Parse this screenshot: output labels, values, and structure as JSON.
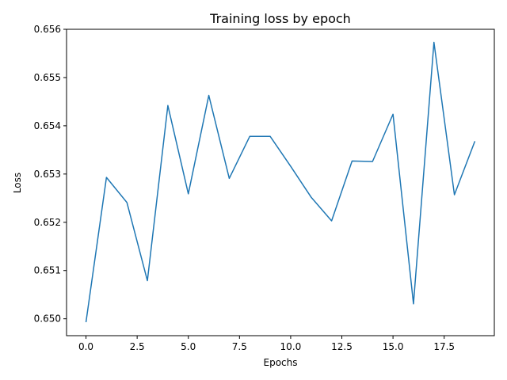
{
  "chart_data": {
    "type": "line",
    "title": "Training loss by epoch",
    "xlabel": "Epochs",
    "ylabel": "Loss",
    "xlim": [
      -0.95,
      19.95
    ],
    "ylim": [
      0.64965,
      0.656
    ],
    "xticks": [
      0.0,
      2.5,
      5.0,
      7.5,
      10.0,
      12.5,
      15.0,
      17.5
    ],
    "xtick_labels": [
      "0.0",
      "2.5",
      "5.0",
      "7.5",
      "10.0",
      "12.5",
      "15.0",
      "17.5"
    ],
    "yticks": [
      0.65,
      0.651,
      0.652,
      0.653,
      0.654,
      0.655,
      0.656
    ],
    "ytick_labels": [
      "0.650",
      "0.651",
      "0.652",
      "0.653",
      "0.654",
      "0.655",
      "0.656"
    ],
    "grid": false,
    "series": [
      {
        "color": "#1f77b4",
        "x": [
          0,
          1,
          2,
          3,
          4,
          5,
          6,
          7,
          8,
          9,
          10,
          11,
          12,
          13,
          14,
          15,
          16,
          17,
          18,
          19
        ],
        "y": [
          0.64993,
          0.65293,
          0.65241,
          0.65079,
          0.65442,
          0.65259,
          0.65463,
          0.65291,
          0.65378,
          0.65378,
          0.65316,
          0.65252,
          0.65203,
          0.65327,
          0.65326,
          0.65424,
          0.65031,
          0.65573,
          0.65257,
          0.65368
        ]
      }
    ]
  }
}
